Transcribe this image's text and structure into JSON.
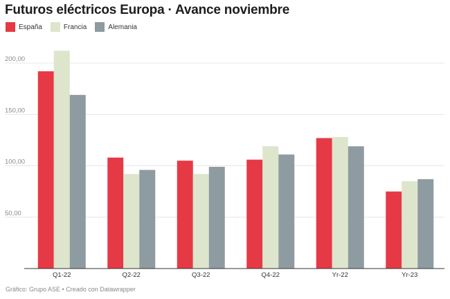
{
  "header": {
    "title": "Futuros eléctricos Europa · Avance noviembre"
  },
  "legend": [
    {
      "label": "España",
      "color": "#e63946"
    },
    {
      "label": "Francia",
      "color": "#dde5cc"
    },
    {
      "label": "Alemania",
      "color": "#8e9ba0"
    }
  ],
  "footer": {
    "source": "Gráfico: Grupo ASE • Creado con Datawrapper"
  },
  "chart_data": {
    "type": "bar",
    "categories": [
      "Q1-22",
      "Q2-22",
      "Q3-22",
      "Q4-22",
      "Yr-22",
      "Yr-23"
    ],
    "series": [
      {
        "name": "España",
        "color": "#e63946",
        "values": [
          192,
          108,
          105,
          106,
          127,
          75
        ]
      },
      {
        "name": "Francia",
        "color": "#dde5cc",
        "values": [
          212,
          92,
          92,
          119,
          128,
          85
        ]
      },
      {
        "name": "Alemania",
        "color": "#8e9ba0",
        "values": [
          169,
          96,
          99,
          111,
          119,
          87
        ]
      }
    ],
    "yticks": [
      50,
      100,
      150,
      200
    ],
    "ytick_labels": [
      "50,00",
      "100,00",
      "150,00",
      "200,00"
    ],
    "ylim": [
      0,
      225
    ],
    "grid": true,
    "legend_position": "top-left"
  }
}
